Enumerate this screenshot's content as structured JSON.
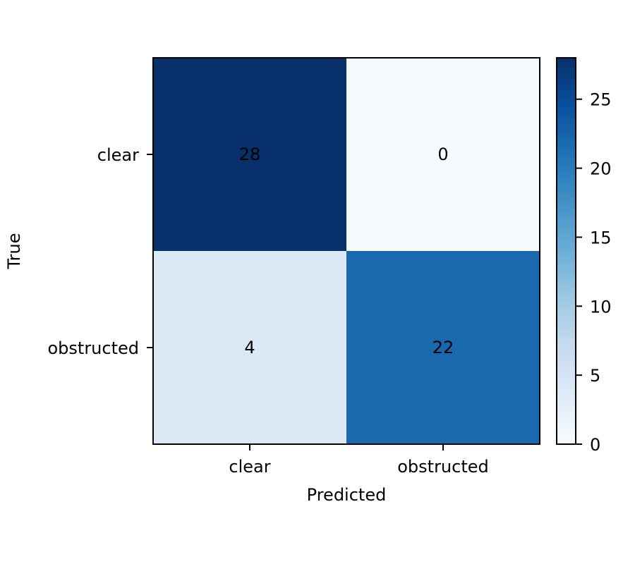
{
  "chart_data": {
    "type": "heatmap",
    "title": "",
    "xlabel": "Predicted",
    "ylabel": "True",
    "x_categories": [
      "clear",
      "obstructed"
    ],
    "y_categories": [
      "clear",
      "obstructed"
    ],
    "values": [
      [
        28,
        0
      ],
      [
        4,
        22
      ]
    ],
    "colormap": "Blues",
    "colorbar": {
      "min": 0,
      "max": 28,
      "ticks": [
        0,
        5,
        10,
        15,
        20,
        25
      ]
    },
    "grid": false
  }
}
